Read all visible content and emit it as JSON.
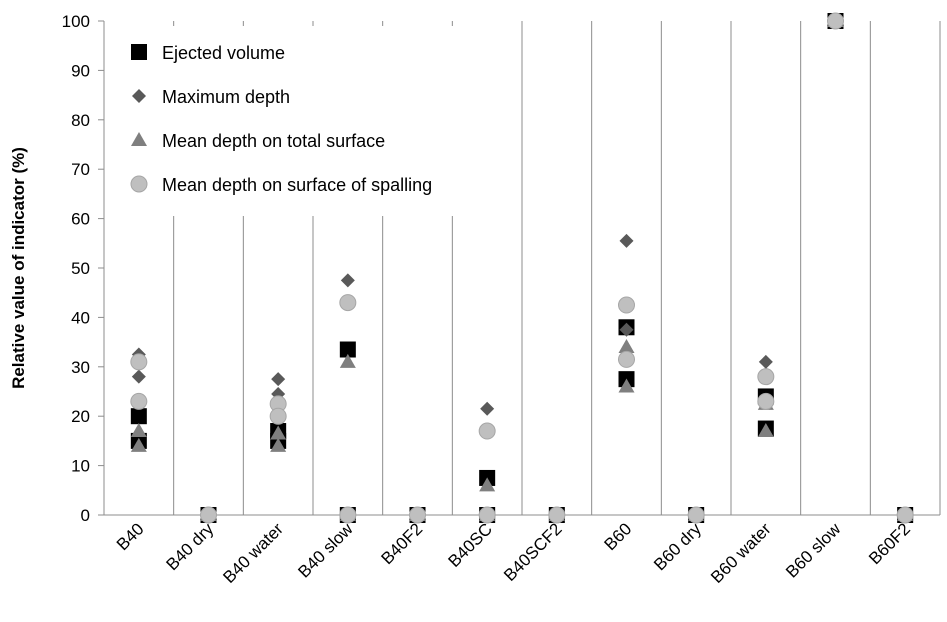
{
  "chart_data": {
    "type": "scatter",
    "title": "",
    "xlabel": "",
    "ylabel": "Relative value of indicator (%)",
    "ylim": [
      0,
      100
    ],
    "yticks": [
      0,
      10,
      20,
      30,
      40,
      50,
      60,
      70,
      80,
      90,
      100
    ],
    "grid": "vertical",
    "legend_position": "top-left",
    "categories": [
      "B40",
      "B40 dry",
      "B40 water",
      "B40 slow",
      "B40F2",
      "B40SC",
      "B40SCF2",
      "B60",
      "B60 dry",
      "B60 water",
      "B60 slow",
      "B60F2"
    ],
    "series": [
      {
        "name": "Ejected volume",
        "marker": "square",
        "color": "#000000",
        "points": [
          {
            "x": "B40",
            "y": 20
          },
          {
            "x": "B40",
            "y": 15
          },
          {
            "x": "B40 dry",
            "y": 0
          },
          {
            "x": "B40 water",
            "y": 17
          },
          {
            "x": "B40 water",
            "y": 15
          },
          {
            "x": "B40 slow",
            "y": 33.5
          },
          {
            "x": "B40 slow",
            "y": 0
          },
          {
            "x": "B40F2",
            "y": 0
          },
          {
            "x": "B40SC",
            "y": 7.5
          },
          {
            "x": "B40SC",
            "y": 0
          },
          {
            "x": "B40SCF2",
            "y": 0
          },
          {
            "x": "B60",
            "y": 38
          },
          {
            "x": "B60",
            "y": 27.5
          },
          {
            "x": "B60 dry",
            "y": 0
          },
          {
            "x": "B60 water",
            "y": 24
          },
          {
            "x": "B60 water",
            "y": 17.5
          },
          {
            "x": "B60 slow",
            "y": 100
          },
          {
            "x": "B60F2",
            "y": 0
          }
        ]
      },
      {
        "name": "Maximum depth",
        "marker": "diamond",
        "color": "#595959",
        "points": [
          {
            "x": "B40",
            "y": 32.5
          },
          {
            "x": "B40",
            "y": 28
          },
          {
            "x": "B40 dry",
            "y": 0
          },
          {
            "x": "B40 water",
            "y": 27.5
          },
          {
            "x": "B40 water",
            "y": 24.5
          },
          {
            "x": "B40 slow",
            "y": 47.5
          },
          {
            "x": "B40 slow",
            "y": 0
          },
          {
            "x": "B40F2",
            "y": 0
          },
          {
            "x": "B40SC",
            "y": 21.5
          },
          {
            "x": "B40SC",
            "y": 0
          },
          {
            "x": "B40SCF2",
            "y": 0
          },
          {
            "x": "B60",
            "y": 55.5
          },
          {
            "x": "B60",
            "y": 37.5
          },
          {
            "x": "B60 dry",
            "y": 0
          },
          {
            "x": "B60 water",
            "y": 31
          },
          {
            "x": "B60 water",
            "y": 28.5
          },
          {
            "x": "B60 slow",
            "y": 100
          },
          {
            "x": "B60F2",
            "y": 0
          }
        ]
      },
      {
        "name": "Mean depth on total surface",
        "marker": "triangle",
        "color": "#7f7f7f",
        "points": [
          {
            "x": "B40",
            "y": 17
          },
          {
            "x": "B40",
            "y": 14
          },
          {
            "x": "B40 dry",
            "y": 0
          },
          {
            "x": "B40 water",
            "y": 16.5
          },
          {
            "x": "B40 water",
            "y": 14
          },
          {
            "x": "B40 slow",
            "y": 31
          },
          {
            "x": "B40 slow",
            "y": 0
          },
          {
            "x": "B40F2",
            "y": 0
          },
          {
            "x": "B40SC",
            "y": 6
          },
          {
            "x": "B40SC",
            "y": 0
          },
          {
            "x": "B40SCF2",
            "y": 0
          },
          {
            "x": "B60",
            "y": 34
          },
          {
            "x": "B60",
            "y": 26
          },
          {
            "x": "B60 dry",
            "y": 0
          },
          {
            "x": "B60 water",
            "y": 22.5
          },
          {
            "x": "B60 water",
            "y": 17
          },
          {
            "x": "B60 slow",
            "y": 100
          },
          {
            "x": "B60F2",
            "y": 0
          }
        ]
      },
      {
        "name": "Mean depth on surface of spalling",
        "marker": "circle",
        "color": "#bfbfbf",
        "points": [
          {
            "x": "B40",
            "y": 31
          },
          {
            "x": "B40",
            "y": 23
          },
          {
            "x": "B40 dry",
            "y": 0
          },
          {
            "x": "B40 water",
            "y": 22.5
          },
          {
            "x": "B40 water",
            "y": 20
          },
          {
            "x": "B40 slow",
            "y": 43
          },
          {
            "x": "B40 slow",
            "y": 0
          },
          {
            "x": "B40F2",
            "y": 0
          },
          {
            "x": "B40SC",
            "y": 17
          },
          {
            "x": "B40SC",
            "y": 0
          },
          {
            "x": "B40SCF2",
            "y": 0
          },
          {
            "x": "B60",
            "y": 42.5
          },
          {
            "x": "B60",
            "y": 31.5
          },
          {
            "x": "B60 dry",
            "y": 0
          },
          {
            "x": "B60 water",
            "y": 28
          },
          {
            "x": "B60 water",
            "y": 23
          },
          {
            "x": "B60 slow",
            "y": 100
          },
          {
            "x": "B60F2",
            "y": 0
          }
        ]
      }
    ]
  }
}
